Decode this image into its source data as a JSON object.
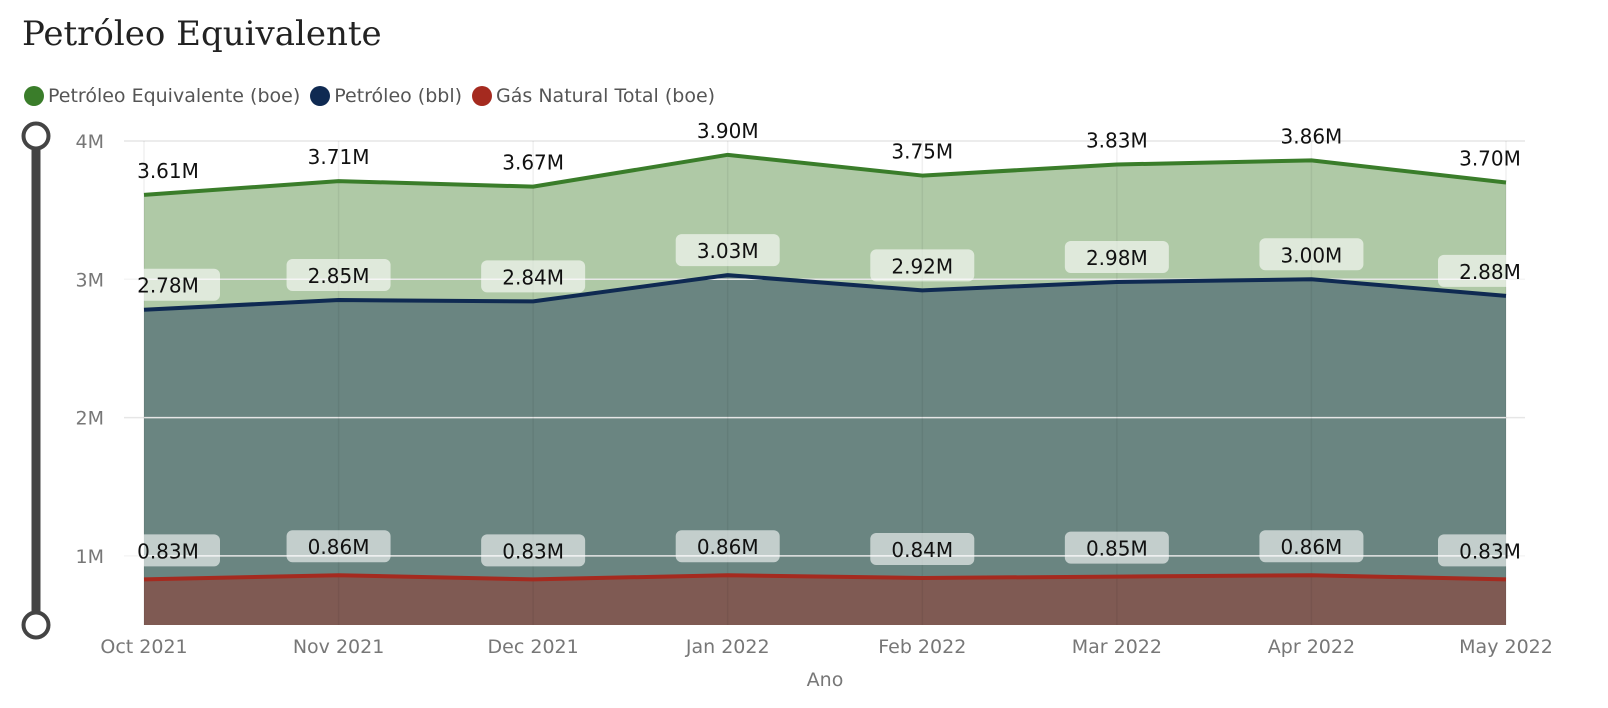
{
  "header": {
    "title": "Petróleo Equivalente"
  },
  "chart_data": {
    "type": "area",
    "title": "Petróleo Equivalente",
    "xlabel": "Ano",
    "ylabel": "",
    "categories": [
      "Oct 2021",
      "Nov 2021",
      "Dec 2021",
      "Jan 2022",
      "Feb 2022",
      "Mar 2022",
      "Apr 2022",
      "May 2022"
    ],
    "series": [
      {
        "name": "Petróleo Equivalente (boe)",
        "color": "#3a7d2a",
        "fill": "#afc9a6",
        "values": [
          3.61,
          3.71,
          3.67,
          3.9,
          3.75,
          3.83,
          3.86,
          3.7
        ],
        "labels": [
          "3.61M",
          "3.71M",
          "3.67M",
          "3.90M",
          "3.75M",
          "3.83M",
          "3.86M",
          "3.70M"
        ]
      },
      {
        "name": "Petróleo (bbl)",
        "color": "#0f2a52",
        "fill": "#6a8581",
        "values": [
          2.78,
          2.85,
          2.84,
          3.03,
          2.92,
          2.98,
          3.0,
          2.88
        ],
        "labels": [
          "2.78M",
          "2.85M",
          "2.84M",
          "3.03M",
          "2.92M",
          "2.98M",
          "3.00M",
          "2.88M"
        ]
      },
      {
        "name": "Gás Natural Total (boe)",
        "color": "#a52a1f",
        "fill": "#7f5a53",
        "values": [
          0.83,
          0.86,
          0.83,
          0.86,
          0.84,
          0.85,
          0.86,
          0.83
        ],
        "labels": [
          "0.83M",
          "0.86M",
          "0.83M",
          "0.86M",
          "0.84M",
          "0.85M",
          "0.86M",
          "0.83M"
        ]
      }
    ],
    "yticks": [
      1,
      2,
      3,
      4
    ],
    "ytick_labels": [
      "1M",
      "2M",
      "3M",
      "4M"
    ],
    "ylim": [
      0.5,
      4.0
    ],
    "y_unit": "M",
    "grid": true,
    "legend_position": "top-left"
  }
}
